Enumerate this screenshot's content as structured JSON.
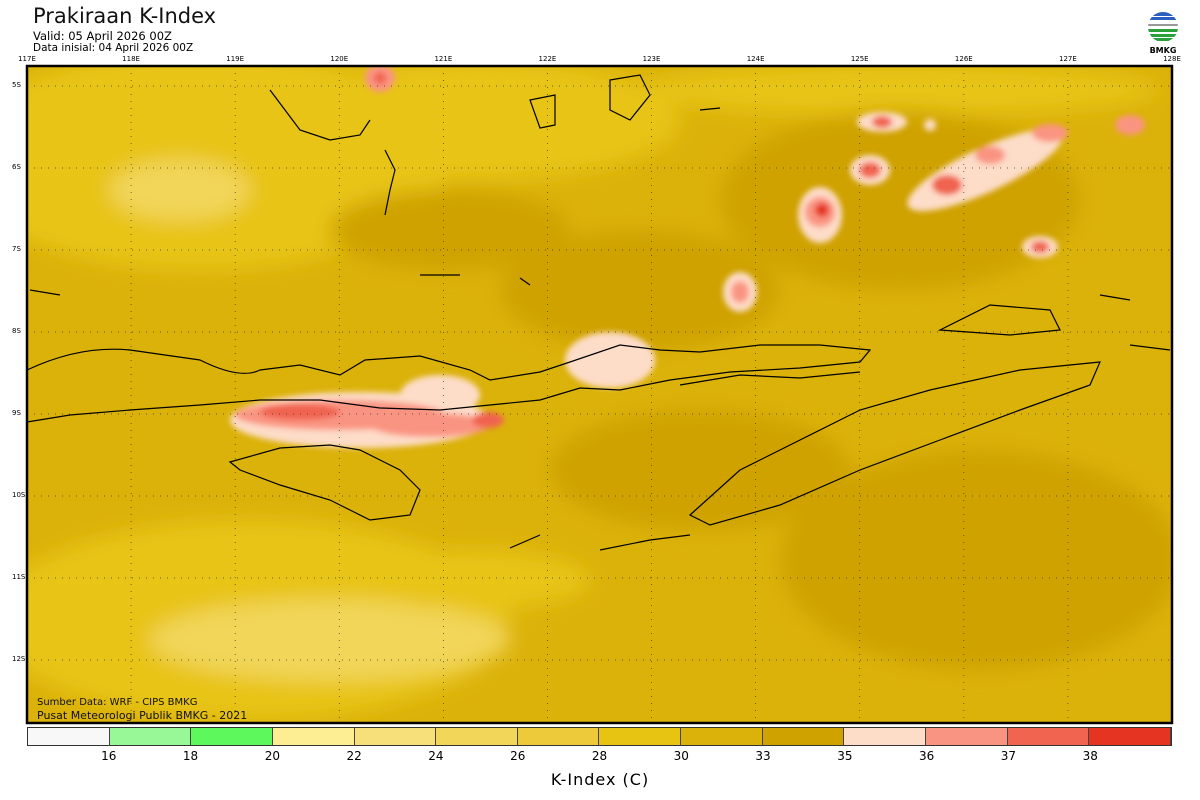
{
  "header": {
    "title": "Prakiraan K-Index",
    "valid": "Valid: 05 April 2026 00Z",
    "initial": "Data inisial: 04 April 2026 00Z",
    "logo_text": "BMKG"
  },
  "axes": {
    "lon_labels": [
      "117E",
      "118E",
      "119E",
      "120E",
      "121E",
      "122E",
      "123E",
      "124E",
      "125E",
      "126E",
      "127E",
      "128E"
    ],
    "lat_labels": [
      "5S",
      "6S",
      "7S",
      "8S",
      "9S",
      "10S",
      "11S",
      "12S"
    ]
  },
  "credits": {
    "source": "Sumber Data: WRF - CIPS BMKG",
    "org": "Pusat Meteorologi Publik BMKG - 2021"
  },
  "colorbar": {
    "colors": [
      "#f8f8f8",
      "#98f898",
      "#5cf85c",
      "#fdee93",
      "#f7e07a",
      "#f2d65a",
      "#ecca3a",
      "#e8c412",
      "#dbb20a",
      "#cfa200",
      "#fddcc8",
      "#fa9482",
      "#f06450",
      "#e63422"
    ],
    "labels": [
      "16",
      "18",
      "20",
      "22",
      "24",
      "26",
      "28",
      "30",
      "33",
      "35",
      "36",
      "37",
      "38"
    ],
    "title": "K-Index (C)"
  }
}
